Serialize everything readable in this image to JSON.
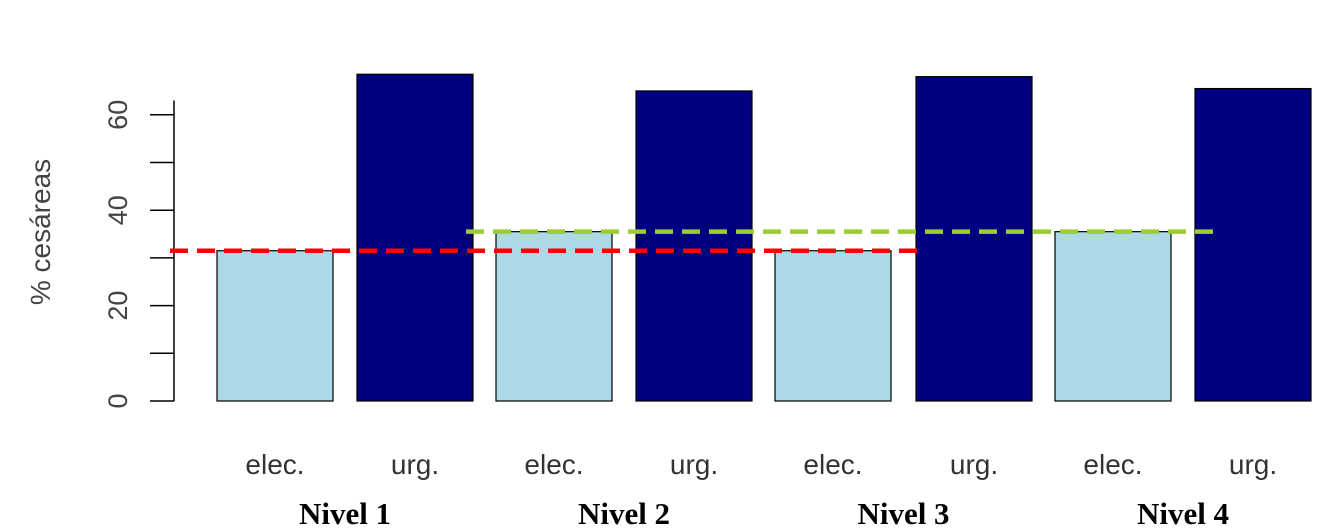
{
  "chart_data": {
    "type": "bar",
    "title": "",
    "ylabel": "% cesáreas",
    "xlabel": "",
    "ylim": [
      0,
      70
    ],
    "yticks": [
      0,
      20,
      40,
      60
    ],
    "grid": false,
    "groups": [
      "Nivel 1",
      "Nivel 2",
      "Nivel 3",
      "Nivel 4"
    ],
    "categories": [
      "elec.",
      "urg."
    ],
    "bars": [
      {
        "group": "Nivel 1",
        "category": "elec.",
        "value": 31.5
      },
      {
        "group": "Nivel 1",
        "category": "urg.",
        "value": 68.5
      },
      {
        "group": "Nivel 2",
        "category": "elec.",
        "value": 35.5
      },
      {
        "group": "Nivel 2",
        "category": "urg.",
        "value": 65
      },
      {
        "group": "Nivel 3",
        "category": "elec.",
        "value": 31.5
      },
      {
        "group": "Nivel 3",
        "category": "urg.",
        "value": 68
      },
      {
        "group": "Nivel 4",
        "category": "elec.",
        "value": 35.5
      },
      {
        "group": "Nivel 4",
        "category": "urg.",
        "value": 65.5
      }
    ],
    "colors": {
      "elec.": "#add8e6",
      "urg.": "#000080"
    },
    "reference_lines": [
      {
        "value": 31.5,
        "color": "#ff0000",
        "style": "dashed",
        "from_bar": 0,
        "to_bar": 4
      },
      {
        "value": 35.5,
        "color": "#9acd32",
        "style": "dashed",
        "from_bar": 2,
        "to_bar": 6
      }
    ]
  }
}
